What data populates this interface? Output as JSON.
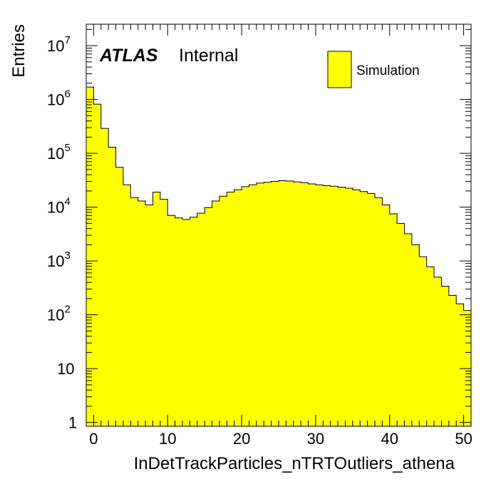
{
  "chart_data": {
    "type": "bar",
    "histogram": true,
    "log_y": true,
    "xlabel": "InDetTrackParticles_nTRTOutliers_athena",
    "ylabel": "Entries",
    "xlim": [
      -1,
      51
    ],
    "ylim": [
      0.85,
      25000000
    ],
    "x_ticks": [
      {
        "value": 0,
        "label": "0"
      },
      {
        "value": 10,
        "label": "10"
      },
      {
        "value": 20,
        "label": "20"
      },
      {
        "value": 30,
        "label": "30"
      },
      {
        "value": 40,
        "label": "40"
      },
      {
        "value": 50,
        "label": "50"
      }
    ],
    "y_ticks": [
      {
        "value": 1,
        "base": "1",
        "exp": ""
      },
      {
        "value": 10,
        "base": "10",
        "exp": ""
      },
      {
        "value": 100,
        "base": "10",
        "exp": "2"
      },
      {
        "value": 1000,
        "base": "10",
        "exp": "3"
      },
      {
        "value": 10000,
        "base": "10",
        "exp": "4"
      },
      {
        "value": 100000,
        "base": "10",
        "exp": "5"
      },
      {
        "value": 1000000,
        "base": "10",
        "exp": "6"
      },
      {
        "value": 10000000,
        "base": "10",
        "exp": "7"
      }
    ],
    "bin_edges_start": -1,
    "bin_width": 1,
    "series": [
      {
        "name": "Simulation",
        "color": "#ffff00",
        "values": [
          1700000,
          820000,
          290000,
          130000,
          55000,
          26000,
          15000,
          13000,
          11000,
          19000,
          14000,
          7000,
          6300,
          5900,
          6500,
          7700,
          9800,
          13000,
          16000,
          19000,
          21000,
          24000,
          26000,
          28000,
          29000,
          30000,
          31000,
          30500,
          29500,
          28500,
          27000,
          26000,
          25000,
          24500,
          23500,
          22500,
          21000,
          19500,
          18000,
          15000,
          11000,
          7500,
          5000,
          3200,
          2000,
          1200,
          780,
          500,
          340,
          230,
          160,
          120
        ]
      }
    ]
  },
  "atlas_label": {
    "bold": "ATLAS",
    "text": "Internal"
  },
  "legend": {
    "label": "Simulation",
    "color": "#ffff00"
  }
}
